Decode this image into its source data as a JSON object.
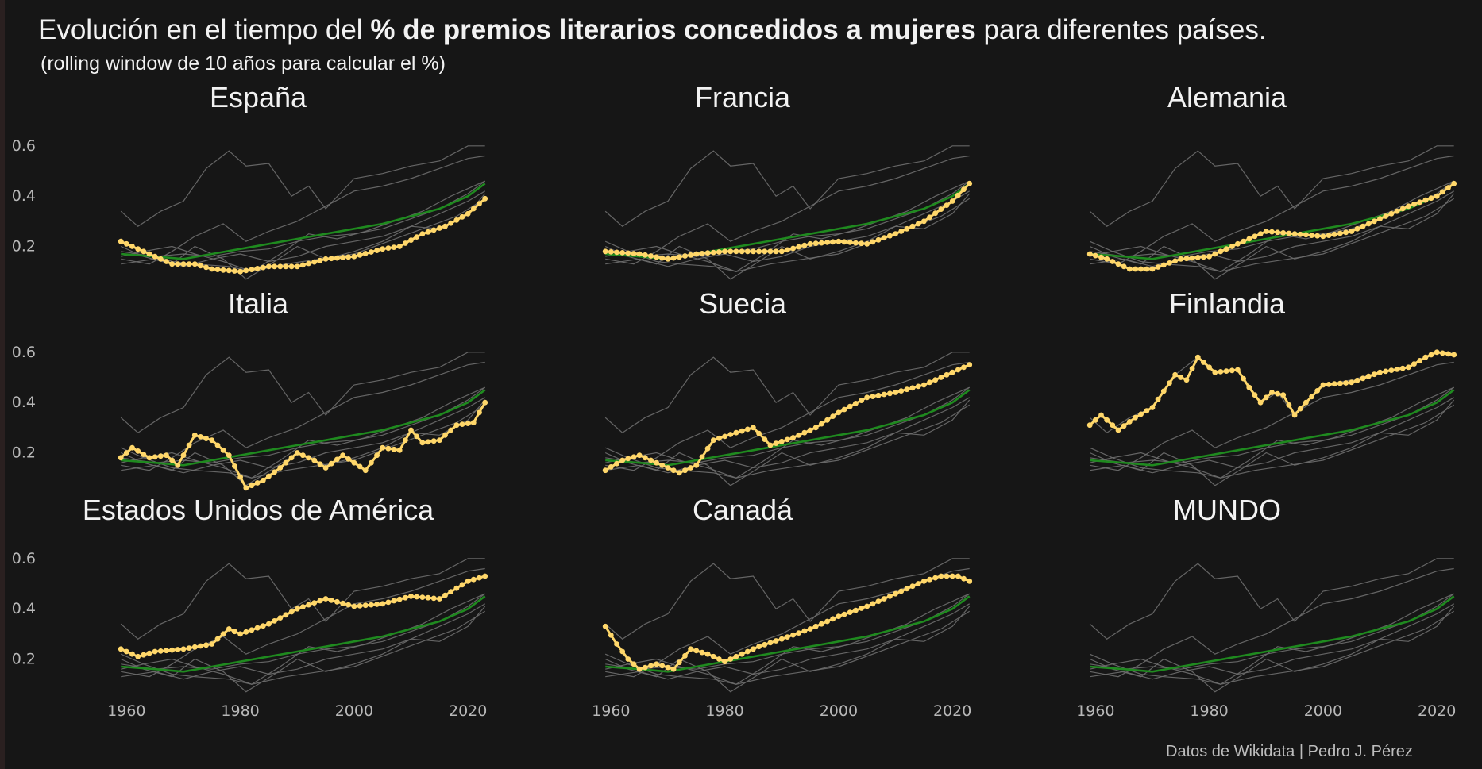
{
  "title": {
    "prefix": "Evolución en el tiempo del ",
    "bold": "% de premios literarios concedidos a mujeres",
    "suffix": " para diferentes países."
  },
  "subtitle": "(rolling window de 10 años para calcular el %)",
  "caption": "Datos de Wikidata |   Pedro J. Pérez",
  "colors": {
    "background": "#161616",
    "highlight": "#ffd76a",
    "world": "#1f8a1f",
    "context": "#6e6e6e",
    "text": "#f2f2f2",
    "tick": "#b8b8b8"
  },
  "chart_data": {
    "type": "line",
    "layout": "small-multiples 3x3",
    "x_ticks": [
      1960,
      1980,
      2000,
      2020
    ],
    "y_ticks": [
      "0.2",
      "0.4",
      "0.6"
    ],
    "xlim": [
      1958,
      2025
    ],
    "ylim": [
      0.05,
      0.65
    ],
    "grid": false,
    "panels": [
      {
        "title": "España",
        "highlight": true,
        "points": [
          [
            1959,
            0.22
          ],
          [
            1962,
            0.19
          ],
          [
            1965,
            0.16
          ],
          [
            1968,
            0.13
          ],
          [
            1972,
            0.13
          ],
          [
            1975,
            0.11
          ],
          [
            1980,
            0.1
          ],
          [
            1985,
            0.12
          ],
          [
            1990,
            0.12
          ],
          [
            1995,
            0.15
          ],
          [
            2000,
            0.16
          ],
          [
            2005,
            0.19
          ],
          [
            2008,
            0.2
          ],
          [
            2012,
            0.25
          ],
          [
            2016,
            0.28
          ],
          [
            2020,
            0.33
          ],
          [
            2023,
            0.39
          ]
        ]
      },
      {
        "title": "Francia",
        "highlight": true,
        "points": [
          [
            1959,
            0.18
          ],
          [
            1965,
            0.17
          ],
          [
            1970,
            0.15
          ],
          [
            1975,
            0.17
          ],
          [
            1980,
            0.18
          ],
          [
            1985,
            0.18
          ],
          [
            1990,
            0.18
          ],
          [
            1995,
            0.21
          ],
          [
            2000,
            0.22
          ],
          [
            2005,
            0.21
          ],
          [
            2010,
            0.25
          ],
          [
            2015,
            0.3
          ],
          [
            2020,
            0.38
          ],
          [
            2023,
            0.45
          ]
        ]
      },
      {
        "title": "Alemania",
        "highlight": true,
        "points": [
          [
            1959,
            0.17
          ],
          [
            1962,
            0.15
          ],
          [
            1966,
            0.11
          ],
          [
            1970,
            0.11
          ],
          [
            1975,
            0.15
          ],
          [
            1980,
            0.16
          ],
          [
            1985,
            0.21
          ],
          [
            1990,
            0.26
          ],
          [
            1995,
            0.25
          ],
          [
            2000,
            0.24
          ],
          [
            2005,
            0.26
          ],
          [
            2010,
            0.31
          ],
          [
            2015,
            0.36
          ],
          [
            2020,
            0.4
          ],
          [
            2023,
            0.45
          ]
        ]
      },
      {
        "title": "Italia",
        "highlight": true,
        "points": [
          [
            1959,
            0.18
          ],
          [
            1961,
            0.22
          ],
          [
            1964,
            0.18
          ],
          [
            1967,
            0.19
          ],
          [
            1969,
            0.15
          ],
          [
            1972,
            0.27
          ],
          [
            1975,
            0.25
          ],
          [
            1978,
            0.19
          ],
          [
            1981,
            0.06
          ],
          [
            1984,
            0.09
          ],
          [
            1987,
            0.14
          ],
          [
            1990,
            0.2
          ],
          [
            1993,
            0.17
          ],
          [
            1995,
            0.14
          ],
          [
            1998,
            0.19
          ],
          [
            2002,
            0.13
          ],
          [
            2005,
            0.22
          ],
          [
            2008,
            0.21
          ],
          [
            2010,
            0.29
          ],
          [
            2012,
            0.24
          ],
          [
            2015,
            0.25
          ],
          [
            2018,
            0.31
          ],
          [
            2021,
            0.32
          ],
          [
            2023,
            0.4
          ]
        ]
      },
      {
        "title": "Suecia",
        "highlight": true,
        "points": [
          [
            1959,
            0.13
          ],
          [
            1962,
            0.17
          ],
          [
            1965,
            0.19
          ],
          [
            1968,
            0.16
          ],
          [
            1972,
            0.12
          ],
          [
            1975,
            0.15
          ],
          [
            1978,
            0.25
          ],
          [
            1982,
            0.28
          ],
          [
            1985,
            0.3
          ],
          [
            1988,
            0.23
          ],
          [
            1992,
            0.26
          ],
          [
            1996,
            0.3
          ],
          [
            2000,
            0.36
          ],
          [
            2005,
            0.42
          ],
          [
            2010,
            0.44
          ],
          [
            2015,
            0.47
          ],
          [
            2020,
            0.52
          ],
          [
            2023,
            0.55
          ]
        ]
      },
      {
        "title": "Finlandia",
        "highlight": true,
        "points": [
          [
            1959,
            0.31
          ],
          [
            1961,
            0.35
          ],
          [
            1964,
            0.29
          ],
          [
            1967,
            0.34
          ],
          [
            1970,
            0.38
          ],
          [
            1974,
            0.51
          ],
          [
            1976,
            0.49
          ],
          [
            1978,
            0.58
          ],
          [
            1981,
            0.52
          ],
          [
            1985,
            0.53
          ],
          [
            1987,
            0.46
          ],
          [
            1989,
            0.4
          ],
          [
            1991,
            0.44
          ],
          [
            1993,
            0.43
          ],
          [
            1995,
            0.35
          ],
          [
            1997,
            0.4
          ],
          [
            2000,
            0.47
          ],
          [
            2005,
            0.48
          ],
          [
            2010,
            0.52
          ],
          [
            2015,
            0.54
          ],
          [
            2018,
            0.58
          ],
          [
            2020,
            0.6
          ],
          [
            2023,
            0.59
          ]
        ]
      },
      {
        "title": "Estados Unidos de América",
        "highlight": true,
        "points": [
          [
            1959,
            0.24
          ],
          [
            1962,
            0.21
          ],
          [
            1965,
            0.23
          ],
          [
            1970,
            0.24
          ],
          [
            1975,
            0.26
          ],
          [
            1978,
            0.32
          ],
          [
            1980,
            0.3
          ],
          [
            1985,
            0.34
          ],
          [
            1990,
            0.4
          ],
          [
            1995,
            0.44
          ],
          [
            2000,
            0.41
          ],
          [
            2005,
            0.42
          ],
          [
            2010,
            0.45
          ],
          [
            2015,
            0.44
          ],
          [
            2020,
            0.51
          ],
          [
            2023,
            0.53
          ]
        ]
      },
      {
        "title": "Canadá",
        "highlight": true,
        "points": [
          [
            1959,
            0.33
          ],
          [
            1961,
            0.26
          ],
          [
            1963,
            0.2
          ],
          [
            1965,
            0.16
          ],
          [
            1968,
            0.18
          ],
          [
            1971,
            0.16
          ],
          [
            1974,
            0.24
          ],
          [
            1977,
            0.22
          ],
          [
            1980,
            0.19
          ],
          [
            1983,
            0.22
          ],
          [
            1986,
            0.25
          ],
          [
            1990,
            0.28
          ],
          [
            1995,
            0.32
          ],
          [
            2000,
            0.37
          ],
          [
            2005,
            0.41
          ],
          [
            2010,
            0.46
          ],
          [
            2015,
            0.51
          ],
          [
            2018,
            0.53
          ],
          [
            2021,
            0.53
          ],
          [
            2023,
            0.51
          ]
        ]
      },
      {
        "title": "MUNDO",
        "highlight": false,
        "points": []
      }
    ],
    "world": {
      "points": [
        [
          1959,
          0.17
        ],
        [
          1965,
          0.16
        ],
        [
          1970,
          0.15
        ],
        [
          1975,
          0.17
        ],
        [
          1980,
          0.19
        ],
        [
          1985,
          0.21
        ],
        [
          1990,
          0.23
        ],
        [
          1995,
          0.25
        ],
        [
          2000,
          0.27
        ],
        [
          2005,
          0.29
        ],
        [
          2010,
          0.32
        ],
        [
          2015,
          0.35
        ],
        [
          2020,
          0.4
        ],
        [
          2023,
          0.45
        ]
      ]
    },
    "background_series": [
      {
        "points": [
          [
            1959,
            0.34
          ],
          [
            1962,
            0.28
          ],
          [
            1966,
            0.34
          ],
          [
            1970,
            0.38
          ],
          [
            1974,
            0.51
          ],
          [
            1978,
            0.58
          ],
          [
            1981,
            0.52
          ],
          [
            1985,
            0.53
          ],
          [
            1989,
            0.4
          ],
          [
            1992,
            0.44
          ],
          [
            1995,
            0.35
          ],
          [
            2000,
            0.47
          ],
          [
            2005,
            0.49
          ],
          [
            2010,
            0.52
          ],
          [
            2015,
            0.54
          ],
          [
            2020,
            0.6
          ],
          [
            2023,
            0.6
          ]
        ]
      },
      {
        "points": [
          [
            1959,
            0.22
          ],
          [
            1963,
            0.18
          ],
          [
            1968,
            0.14
          ],
          [
            1972,
            0.13
          ],
          [
            1978,
            0.12
          ],
          [
            1982,
            0.1
          ],
          [
            1988,
            0.13
          ],
          [
            1994,
            0.15
          ],
          [
            2000,
            0.17
          ],
          [
            2006,
            0.22
          ],
          [
            2012,
            0.27
          ],
          [
            2018,
            0.32
          ],
          [
            2023,
            0.39
          ]
        ]
      },
      {
        "points": [
          [
            1959,
            0.15
          ],
          [
            1964,
            0.13
          ],
          [
            1968,
            0.18
          ],
          [
            1972,
            0.24
          ],
          [
            1977,
            0.29
          ],
          [
            1981,
            0.22
          ],
          [
            1985,
            0.26
          ],
          [
            1990,
            0.3
          ],
          [
            1995,
            0.36
          ],
          [
            2000,
            0.42
          ],
          [
            2005,
            0.44
          ],
          [
            2010,
            0.47
          ],
          [
            2015,
            0.51
          ],
          [
            2020,
            0.55
          ],
          [
            2023,
            0.56
          ]
        ]
      },
      {
        "points": [
          [
            1959,
            0.2
          ],
          [
            1963,
            0.16
          ],
          [
            1968,
            0.13
          ],
          [
            1972,
            0.2
          ],
          [
            1977,
            0.15
          ],
          [
            1981,
            0.07
          ],
          [
            1986,
            0.14
          ],
          [
            1990,
            0.2
          ],
          [
            1995,
            0.15
          ],
          [
            2000,
            0.18
          ],
          [
            2005,
            0.22
          ],
          [
            2010,
            0.28
          ],
          [
            2015,
            0.27
          ],
          [
            2020,
            0.33
          ],
          [
            2023,
            0.41
          ]
        ]
      },
      {
        "points": [
          [
            1959,
            0.13
          ],
          [
            1965,
            0.15
          ],
          [
            1970,
            0.12
          ],
          [
            1975,
            0.15
          ],
          [
            1980,
            0.17
          ],
          [
            1985,
            0.14
          ],
          [
            1990,
            0.16
          ],
          [
            1995,
            0.2
          ],
          [
            2000,
            0.22
          ],
          [
            2005,
            0.24
          ],
          [
            2010,
            0.28
          ],
          [
            2015,
            0.33
          ],
          [
            2020,
            0.38
          ],
          [
            2023,
            0.42
          ]
        ]
      },
      {
        "points": [
          [
            1959,
            0.18
          ],
          [
            1965,
            0.16
          ],
          [
            1970,
            0.17
          ],
          [
            1975,
            0.16
          ],
          [
            1980,
            0.18
          ],
          [
            1985,
            0.19
          ],
          [
            1990,
            0.22
          ],
          [
            1995,
            0.24
          ],
          [
            2000,
            0.25
          ],
          [
            2005,
            0.27
          ],
          [
            2010,
            0.31
          ],
          [
            2015,
            0.35
          ],
          [
            2020,
            0.41
          ],
          [
            2023,
            0.46
          ]
        ]
      },
      {
        "points": [
          [
            1959,
            0.16
          ],
          [
            1963,
            0.18
          ],
          [
            1968,
            0.2
          ],
          [
            1972,
            0.17
          ],
          [
            1977,
            0.14
          ],
          [
            1982,
            0.1
          ],
          [
            1987,
            0.17
          ],
          [
            1992,
            0.25
          ],
          [
            1997,
            0.23
          ],
          [
            2002,
            0.26
          ],
          [
            2007,
            0.3
          ],
          [
            2012,
            0.34
          ],
          [
            2017,
            0.4
          ],
          [
            2022,
            0.45
          ],
          [
            2023,
            0.46
          ]
        ]
      }
    ]
  }
}
